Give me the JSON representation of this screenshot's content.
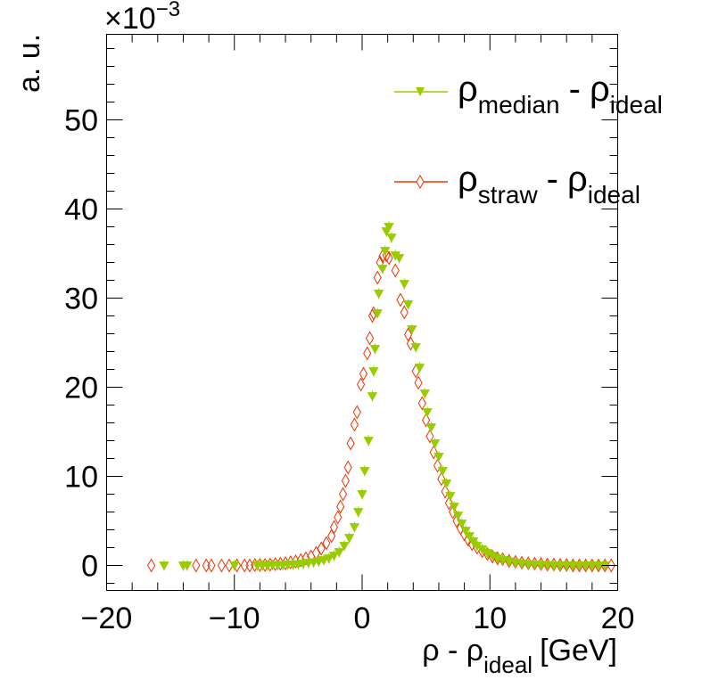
{
  "chart_data": {
    "type": "scatter",
    "title": "",
    "xlabel": {
      "main": "ρ - ρ",
      "sub": "ideal",
      "unit": "[GeV]"
    },
    "ylabel": "a. u.",
    "y_multiplier": {
      "base": "×10",
      "exponent": "−3"
    },
    "xlim": [
      -20,
      20
    ],
    "ylim": [
      -2.8,
      59.6
    ],
    "x_ticks": [
      -20,
      -10,
      0,
      10,
      20
    ],
    "x_tick_labels": [
      "−20",
      "−10",
      "0",
      "10",
      "20"
    ],
    "y_ticks": [
      0,
      10,
      20,
      30,
      40,
      50
    ],
    "y_tick_labels": [
      "0",
      "10",
      "20",
      "30",
      "40",
      "50"
    ],
    "legend_position": "top-right",
    "series": [
      {
        "name": "median",
        "legend": {
          "rho": "ρ",
          "sub1": "median",
          "dash": "-",
          "rho2": "ρ",
          "sub2": "ideal"
        },
        "color": "#99cc00",
        "marker": "triangle-down",
        "points": [
          [
            -15.5,
            0.0
          ],
          [
            -14.0,
            0.0
          ],
          [
            -13.7,
            0.0
          ],
          [
            -10.0,
            0.0
          ],
          [
            -8.2,
            0.0
          ],
          [
            -7.8,
            0.0
          ],
          [
            -7.4,
            0.0
          ],
          [
            -7.0,
            0.05
          ],
          [
            -6.6,
            0.05
          ],
          [
            -6.2,
            0.05
          ],
          [
            -5.8,
            0.1
          ],
          [
            -5.4,
            0.1
          ],
          [
            -5.0,
            0.15
          ],
          [
            -4.6,
            0.2
          ],
          [
            -4.2,
            0.3
          ],
          [
            -3.8,
            0.35
          ],
          [
            -3.4,
            0.45
          ],
          [
            -3.0,
            0.6
          ],
          [
            -2.6,
            0.8
          ],
          [
            -2.2,
            1.1
          ],
          [
            -1.8,
            1.5
          ],
          [
            -1.4,
            2.2
          ],
          [
            -1.0,
            3.1
          ],
          [
            -0.6,
            4.3
          ],
          [
            -0.3,
            6.0
          ],
          [
            0.0,
            8.0
          ],
          [
            0.2,
            10.6
          ],
          [
            0.5,
            14.0
          ],
          [
            0.8,
            19.0
          ],
          [
            0.9,
            21.8
          ],
          [
            1.0,
            24.3
          ],
          [
            1.2,
            28.3
          ],
          [
            1.3,
            30.5
          ],
          [
            1.6,
            33.3
          ],
          [
            1.8,
            35.3
          ],
          [
            1.9,
            37.5
          ],
          [
            2.1,
            38.0
          ],
          [
            2.3,
            36.8
          ],
          [
            2.6,
            34.8
          ],
          [
            2.9,
            34.5
          ],
          [
            3.3,
            31.6
          ],
          [
            3.6,
            29.3
          ],
          [
            3.9,
            26.5
          ],
          [
            4.2,
            24.5
          ],
          [
            4.5,
            22.2
          ],
          [
            4.9,
            19.3
          ],
          [
            5.1,
            17.2
          ],
          [
            5.4,
            15.5
          ],
          [
            5.7,
            13.7
          ],
          [
            6.0,
            12.2
          ],
          [
            6.3,
            10.6
          ],
          [
            6.6,
            9.2
          ],
          [
            6.9,
            7.8
          ],
          [
            7.2,
            6.6
          ],
          [
            7.5,
            5.6
          ],
          [
            7.8,
            4.7
          ],
          [
            8.1,
            3.9
          ],
          [
            8.4,
            3.3
          ],
          [
            8.7,
            2.7
          ],
          [
            9.0,
            2.2
          ],
          [
            9.4,
            1.8
          ],
          [
            9.8,
            1.4
          ],
          [
            10.2,
            1.1
          ],
          [
            10.6,
            0.8
          ],
          [
            11.0,
            0.6
          ],
          [
            11.5,
            0.45
          ],
          [
            12.0,
            0.3
          ],
          [
            12.5,
            0.2
          ],
          [
            13.0,
            0.15
          ],
          [
            13.5,
            0.1
          ],
          [
            14.0,
            0.05
          ],
          [
            14.5,
            0.05
          ],
          [
            15.0,
            0.0
          ],
          [
            15.5,
            0.0
          ],
          [
            16.0,
            0.0
          ],
          [
            16.5,
            0.0
          ],
          [
            17.0,
            0.0
          ],
          [
            17.5,
            0.0
          ],
          [
            18.0,
            0.0
          ],
          [
            18.5,
            0.0
          ],
          [
            19.0,
            0.0
          ]
        ]
      },
      {
        "name": "straw",
        "legend": {
          "rho": "ρ",
          "sub1": "straw",
          "dash": "-",
          "rho2": "ρ",
          "sub2": "ideal"
        },
        "color": "#ee3300",
        "marker": "open-diamond",
        "points": [
          [
            -16.5,
            0.0
          ],
          [
            -13.0,
            0.0
          ],
          [
            -12.2,
            0.0
          ],
          [
            -11.8,
            0.0
          ],
          [
            -11.0,
            0.0
          ],
          [
            -10.4,
            0.0
          ],
          [
            -9.8,
            0.0
          ],
          [
            -9.2,
            0.0
          ],
          [
            -8.8,
            0.0
          ],
          [
            -8.4,
            0.05
          ],
          [
            -8.0,
            0.05
          ],
          [
            -7.6,
            0.05
          ],
          [
            -7.2,
            0.1
          ],
          [
            -6.8,
            0.15
          ],
          [
            -6.4,
            0.2
          ],
          [
            -6.0,
            0.25
          ],
          [
            -5.6,
            0.35
          ],
          [
            -5.2,
            0.45
          ],
          [
            -4.8,
            0.6
          ],
          [
            -4.4,
            0.8
          ],
          [
            -4.0,
            1.0
          ],
          [
            -3.6,
            1.4
          ],
          [
            -3.2,
            1.9
          ],
          [
            -2.8,
            2.5
          ],
          [
            -2.4,
            3.3
          ],
          [
            -2.2,
            4.3
          ],
          [
            -1.9,
            5.4
          ],
          [
            -1.7,
            6.6
          ],
          [
            -1.5,
            8.0
          ],
          [
            -1.3,
            9.5
          ],
          [
            -1.1,
            11.0
          ],
          [
            -0.9,
            13.7
          ],
          [
            -0.6,
            15.8
          ],
          [
            -0.4,
            17.2
          ],
          [
            -0.1,
            20.3
          ],
          [
            0.1,
            21.5
          ],
          [
            0.4,
            23.8
          ],
          [
            0.6,
            25.5
          ],
          [
            0.8,
            28.0
          ],
          [
            0.9,
            28.3
          ],
          [
            1.2,
            32.3
          ],
          [
            1.4,
            34.0
          ],
          [
            1.6,
            34.7
          ],
          [
            1.9,
            34.8
          ],
          [
            2.1,
            34.5
          ],
          [
            2.6,
            33.1
          ],
          [
            3.0,
            29.8
          ],
          [
            3.3,
            28.4
          ],
          [
            3.6,
            25.9
          ],
          [
            3.8,
            24.9
          ],
          [
            4.2,
            21.8
          ],
          [
            4.4,
            20.5
          ],
          [
            4.7,
            18.2
          ],
          [
            5.0,
            16.3
          ],
          [
            5.3,
            14.5
          ],
          [
            5.6,
            12.7
          ],
          [
            5.9,
            11.2
          ],
          [
            6.2,
            9.7
          ],
          [
            6.5,
            8.3
          ],
          [
            6.8,
            7.0
          ],
          [
            7.1,
            6.0
          ],
          [
            7.4,
            5.0
          ],
          [
            7.7,
            4.2
          ],
          [
            8.0,
            3.5
          ],
          [
            8.3,
            2.9
          ],
          [
            8.6,
            2.4
          ],
          [
            9.0,
            2.0
          ],
          [
            9.4,
            1.6
          ],
          [
            9.8,
            1.3
          ],
          [
            10.2,
            1.0
          ],
          [
            10.6,
            0.8
          ],
          [
            11.0,
            0.7
          ],
          [
            11.5,
            0.5
          ],
          [
            12.0,
            0.4
          ],
          [
            12.5,
            0.3
          ],
          [
            13.0,
            0.25
          ],
          [
            13.5,
            0.2
          ],
          [
            14.0,
            0.15
          ],
          [
            14.5,
            0.1
          ],
          [
            15.0,
            0.1
          ],
          [
            15.5,
            0.05
          ],
          [
            16.0,
            0.05
          ],
          [
            16.5,
            0.0
          ],
          [
            17.0,
            0.0
          ],
          [
            17.5,
            0.0
          ],
          [
            18.0,
            0.0
          ],
          [
            18.5,
            0.0
          ],
          [
            19.0,
            0.0
          ],
          [
            19.5,
            0.0
          ]
        ]
      }
    ]
  }
}
